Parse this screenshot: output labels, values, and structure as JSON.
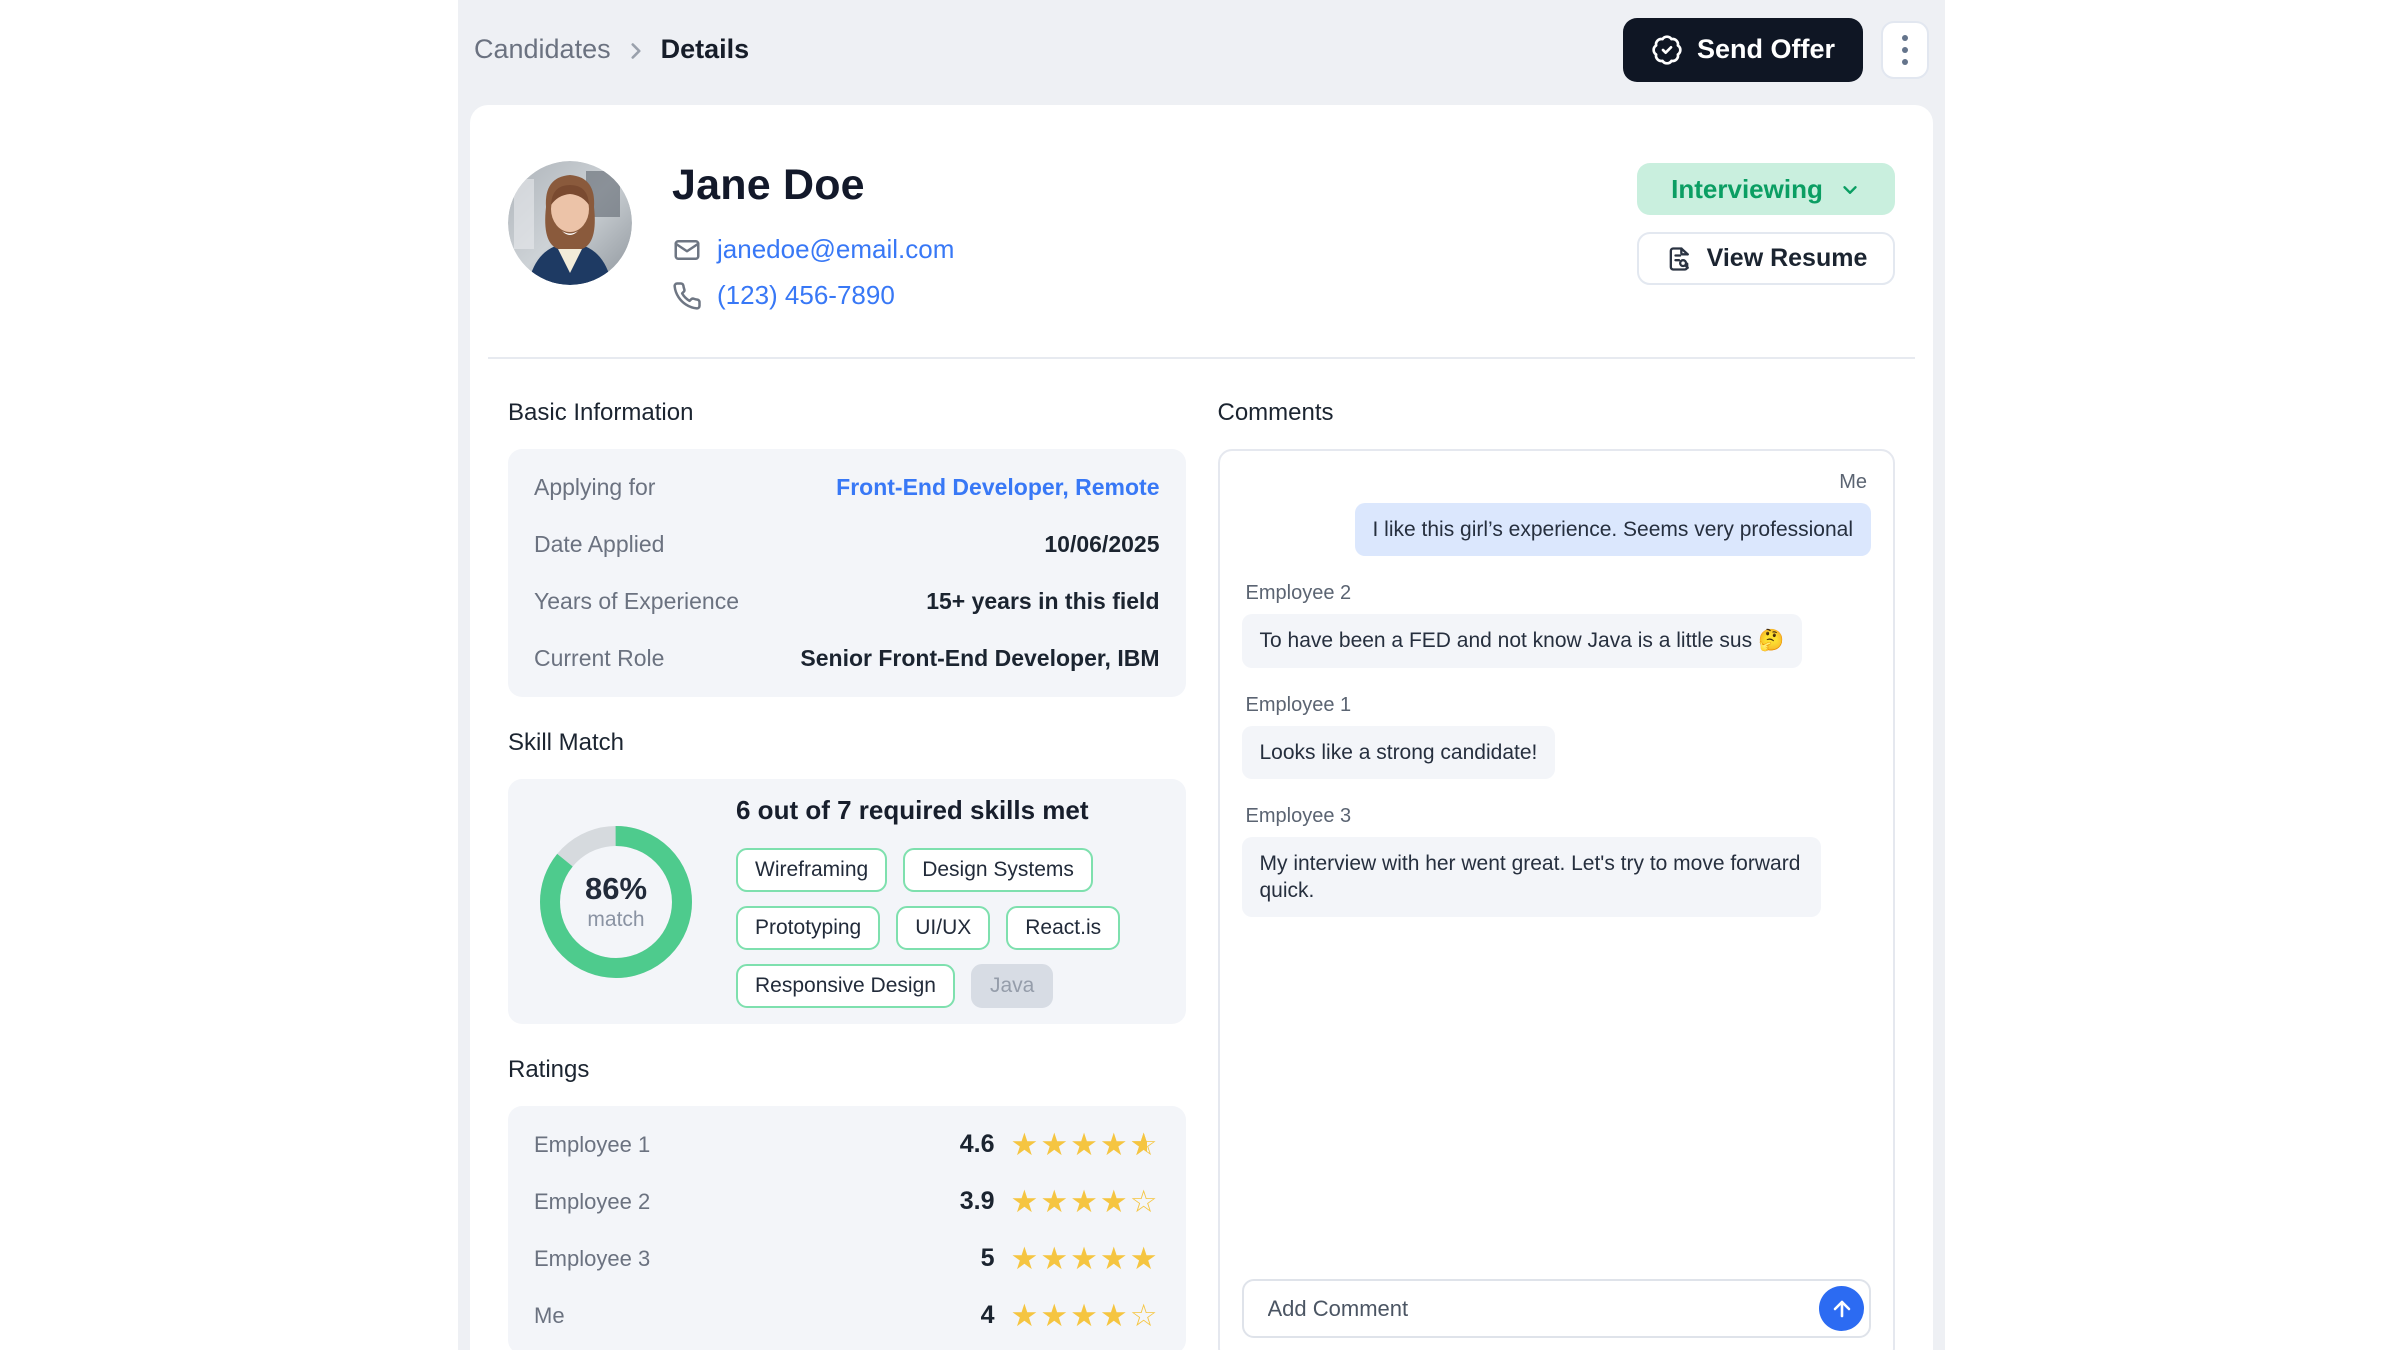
{
  "header": {
    "breadcrumb": {
      "parent": "Candidates",
      "current": "Details"
    },
    "send_offer_label": "Send Offer"
  },
  "profile": {
    "name": "Jane Doe",
    "email": "janedoe@email.com",
    "phone": "(123) 456-7890",
    "status_label": "Interviewing",
    "view_resume_label": "View Resume"
  },
  "basic_info": {
    "title": "Basic Information",
    "rows": [
      {
        "label": "Applying for",
        "value": "Front-End Developer, Remote"
      },
      {
        "label": "Date Applied",
        "value": "10/06/2025"
      },
      {
        "label": "Years of Experience",
        "value": "15+ years in this field"
      },
      {
        "label": "Current Role",
        "value": "Senior Front-End Developer, IBM"
      }
    ]
  },
  "skill_match": {
    "title": "Skill Match",
    "summary": "6 out of 7 required skills met",
    "percent_value": 86,
    "percent_text": "86%",
    "percent_caption": "match",
    "skills": [
      {
        "label": "Wireframing",
        "matched": true
      },
      {
        "label": "Design Systems",
        "matched": true
      },
      {
        "label": "Prototyping",
        "matched": true
      },
      {
        "label": "UI/UX",
        "matched": true
      },
      {
        "label": "React.is",
        "matched": true
      },
      {
        "label": "Responsive Design",
        "matched": true
      },
      {
        "label": "Java",
        "matched": false
      }
    ]
  },
  "ratings": {
    "title": "Ratings",
    "rows": [
      {
        "label": "Employee 1",
        "score": "4.6",
        "stars": 4.5
      },
      {
        "label": "Employee 2",
        "score": "3.9",
        "stars": 4
      },
      {
        "label": "Employee 3",
        "score": "5",
        "stars": 5
      },
      {
        "label": "Me",
        "score": "4",
        "stars": 4
      }
    ]
  },
  "comments": {
    "title": "Comments",
    "messages": [
      {
        "sender": "Me",
        "text": "I like this girl’s experience. Seems very professional",
        "self": true
      },
      {
        "sender": "Employee 2",
        "text": "To have been a FED and not know Java is a little sus 🤔",
        "self": false
      },
      {
        "sender": "Employee 1",
        "text": "Looks like a strong candidate!",
        "self": false
      },
      {
        "sender": "Employee 3",
        "text": "My interview with her went great. Let's try to move forward quick.",
        "self": false
      }
    ],
    "input_placeholder": "Add Comment"
  },
  "colors": {
    "canvas_bg": "#eef0f4",
    "accent_green": "#0b9e63",
    "green_pill_bg": "#c9efde",
    "donut_green": "#4ecb8d",
    "donut_gray": "#d6dade",
    "link_blue": "#3878f6",
    "star_yellow": "#f5c541",
    "self_bubble": "#dbe7fd",
    "send_button_blue": "#2c6bf2",
    "send_offer_bg": "#0f1624"
  }
}
